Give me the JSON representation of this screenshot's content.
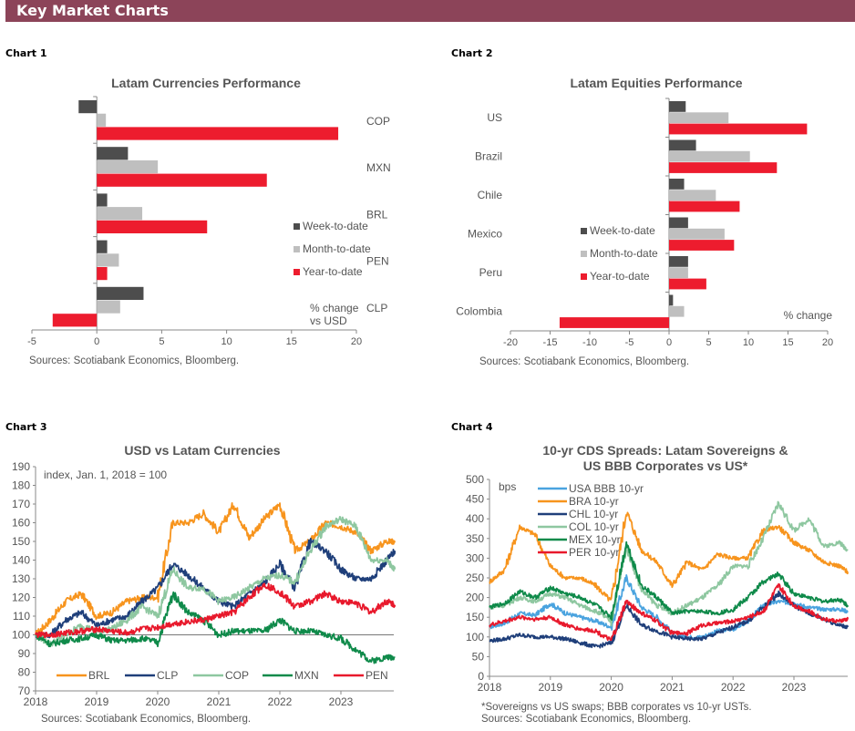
{
  "header": {
    "title": "Key Market Charts"
  },
  "chart_labels": [
    "Chart 1",
    "Chart 2",
    "Chart 3",
    "Chart 4"
  ],
  "chart_data": [
    {
      "type": "bar",
      "orientation": "horizontal",
      "title": "Latam  Currencies Performance",
      "categories": [
        "COP",
        "MXN",
        "BRL",
        "PEN",
        "CLP"
      ],
      "series": [
        {
          "name": "Week-to-date",
          "color": "#4d4d4d",
          "values": [
            -1.4,
            2.4,
            0.8,
            0.8,
            3.6
          ]
        },
        {
          "name": "Month-to-date",
          "color": "#bfbfbf",
          "values": [
            0.7,
            4.7,
            3.5,
            1.7,
            1.8
          ]
        },
        {
          "name": "Year-to-date",
          "color": "#ed1c2e",
          "values": [
            18.6,
            13.1,
            8.5,
            0.8,
            -3.4
          ]
        }
      ],
      "xlim": [
        -5,
        20
      ],
      "xticks": [
        "-5",
        "0",
        "5",
        "10",
        "15",
        "20"
      ],
      "unit_note": [
        "% change",
        "vs USD"
      ],
      "legend": "center-right",
      "source": "Sources: Scotiabank Economics, Bloomberg."
    },
    {
      "type": "bar",
      "orientation": "horizontal",
      "title": "Latam  Equities  Performance",
      "categories": [
        "US",
        "Brazil",
        "Chile",
        "Mexico",
        "Peru",
        "Colombia"
      ],
      "series": [
        {
          "name": "Week-to-date",
          "color": "#4d4d4d",
          "values": [
            2.1,
            3.4,
            1.9,
            2.4,
            2.4,
            0.5
          ]
        },
        {
          "name": "Month-to-date",
          "color": "#bfbfbf",
          "values": [
            7.5,
            10.2,
            5.9,
            7.0,
            2.4,
            1.9
          ]
        },
        {
          "name": "Year-to-date",
          "color": "#ed1c2e",
          "values": [
            17.4,
            13.6,
            8.9,
            8.2,
            4.7,
            -13.8
          ]
        }
      ],
      "xlim": [
        -20,
        20
      ],
      "xticks": [
        "-20",
        "-15",
        "-10",
        "-5",
        "0",
        "5",
        "10",
        "15",
        "20"
      ],
      "unit_note": [
        "% change"
      ],
      "legend": "center",
      "source": "Sources: Scotiabank Economics, Bloomberg."
    },
    {
      "type": "line",
      "title": "USD vs Latam Currencies",
      "note": "index, Jan. 1, 2018 = 100",
      "x": [
        "2018-01-01",
        "2018-04-01",
        "2018-07-01",
        "2018-10-01",
        "2019-01-01",
        "2019-04-01",
        "2019-07-01",
        "2019-10-01",
        "2020-01-01",
        "2020-04-01",
        "2020-07-01",
        "2020-10-01",
        "2021-01-01",
        "2021-04-01",
        "2021-07-01",
        "2021-10-01",
        "2022-01-01",
        "2022-04-01",
        "2022-07-01",
        "2022-10-01",
        "2023-01-01",
        "2023-04-01",
        "2023-07-01",
        "2023-10-01",
        "2023-11-20"
      ],
      "series": [
        {
          "name": "BRL",
          "color": "#f7941d",
          "values": [
            100,
            108,
            118,
            122,
            110,
            112,
            118,
            120,
            120,
            160,
            160,
            165,
            155,
            170,
            152,
            162,
            170,
            145,
            150,
            160,
            158,
            155,
            145,
            150,
            150
          ]
        },
        {
          "name": "CLP",
          "color": "#1f3f7a",
          "values": [
            100,
            100,
            108,
            112,
            105,
            108,
            110,
            118,
            125,
            138,
            132,
            125,
            118,
            115,
            122,
            128,
            138,
            125,
            150,
            145,
            135,
            130,
            130,
            140,
            145
          ]
        },
        {
          "name": "COP",
          "color": "#8ec7a0",
          "values": [
            100,
            95,
            100,
            105,
            102,
            103,
            108,
            115,
            110,
            135,
            125,
            125,
            118,
            120,
            125,
            130,
            132,
            128,
            145,
            158,
            162,
            158,
            140,
            140,
            135
          ]
        },
        {
          "name": "MXN",
          "color": "#0f8a4a",
          "values": [
            100,
            95,
            97,
            98,
            100,
            97,
            97,
            98,
            96,
            122,
            112,
            108,
            100,
            102,
            102,
            102,
            108,
            102,
            102,
            100,
            98,
            92,
            86,
            88,
            88
          ]
        },
        {
          "name": "PEN",
          "color": "#e8192c",
          "values": [
            100,
            100,
            101,
            102,
            103,
            102,
            101,
            103,
            104,
            106,
            107,
            108,
            110,
            112,
            120,
            127,
            123,
            115,
            118,
            122,
            118,
            117,
            112,
            118,
            116
          ]
        }
      ],
      "ylim": [
        70,
        190
      ],
      "yticks": [
        "70",
        "80",
        "90",
        "100",
        "110",
        "120",
        "130",
        "140",
        "150",
        "160",
        "170",
        "180",
        "190"
      ],
      "xticks": [
        "2018",
        "2019",
        "2020",
        "2021",
        "2022",
        "2023"
      ],
      "reference_line": 100,
      "legend": "bottom",
      "source": "Sources: Scotiabank Economics, Bloomberg."
    },
    {
      "type": "line",
      "title": [
        "10-yr  CDS Spreads: Latam  Sovereigns &",
        "US BBB Corporates vs US*"
      ],
      "note": "bps",
      "x": [
        "2018-01-01",
        "2018-04-01",
        "2018-07-01",
        "2018-10-01",
        "2019-01-01",
        "2019-04-01",
        "2019-07-01",
        "2019-10-01",
        "2020-01-01",
        "2020-04-01",
        "2020-07-01",
        "2020-10-01",
        "2021-01-01",
        "2021-04-01",
        "2021-07-01",
        "2021-10-01",
        "2022-01-01",
        "2022-04-01",
        "2022-07-01",
        "2022-10-01",
        "2023-01-01",
        "2023-04-01",
        "2023-07-01",
        "2023-10-01",
        "2023-11-20"
      ],
      "series": [
        {
          "name": "USA BBB 10-yr",
          "color": "#4aa3df",
          "values": [
            125,
            135,
            160,
            155,
            185,
            160,
            150,
            140,
            125,
            250,
            175,
            150,
            110,
            100,
            100,
            115,
            120,
            140,
            180,
            190,
            185,
            175,
            170,
            170,
            165
          ]
        },
        {
          "name": "BRA 10-yr",
          "color": "#f7941d",
          "values": [
            240,
            270,
            380,
            360,
            280,
            250,
            250,
            230,
            190,
            420,
            320,
            290,
            230,
            290,
            270,
            310,
            300,
            300,
            370,
            380,
            340,
            320,
            290,
            280,
            265
          ]
        },
        {
          "name": "CHL 10-yr",
          "color": "#1f3f7a",
          "values": [
            90,
            95,
            105,
            100,
            100,
            95,
            85,
            75,
            85,
            180,
            130,
            115,
            100,
            95,
            95,
            110,
            125,
            140,
            175,
            210,
            180,
            160,
            145,
            130,
            125
          ]
        },
        {
          "name": "COL 10-yr",
          "color": "#8ec7a0",
          "values": [
            175,
            180,
            200,
            190,
            210,
            200,
            180,
            165,
            140,
            330,
            220,
            180,
            160,
            180,
            200,
            230,
            280,
            280,
            350,
            440,
            370,
            400,
            330,
            340,
            320
          ]
        },
        {
          "name": "MEX 10-yr",
          "color": "#0f8a4a",
          "values": [
            175,
            185,
            215,
            200,
            225,
            210,
            200,
            180,
            150,
            340,
            230,
            200,
            160,
            165,
            165,
            160,
            170,
            200,
            240,
            260,
            210,
            200,
            190,
            195,
            180
          ]
        },
        {
          "name": "PER 10-yr",
          "color": "#e8192c",
          "values": [
            130,
            140,
            150,
            145,
            150,
            130,
            120,
            115,
            90,
            190,
            160,
            140,
            110,
            110,
            130,
            135,
            140,
            150,
            165,
            230,
            180,
            165,
            145,
            140,
            145
          ]
        }
      ],
      "ylim": [
        0,
        500
      ],
      "yticks": [
        "0",
        "50",
        "100",
        "150",
        "200",
        "250",
        "300",
        "350",
        "400",
        "450",
        "500"
      ],
      "xticks": [
        "2018",
        "2019",
        "2020",
        "2021",
        "2022",
        "2023"
      ],
      "legend": "top-left",
      "footnote": "*Sovereigns vs US swaps; BBB corporates vs 10-yr USTs.",
      "source": "Sources: Scotiabank Economics, Bloomberg."
    }
  ]
}
